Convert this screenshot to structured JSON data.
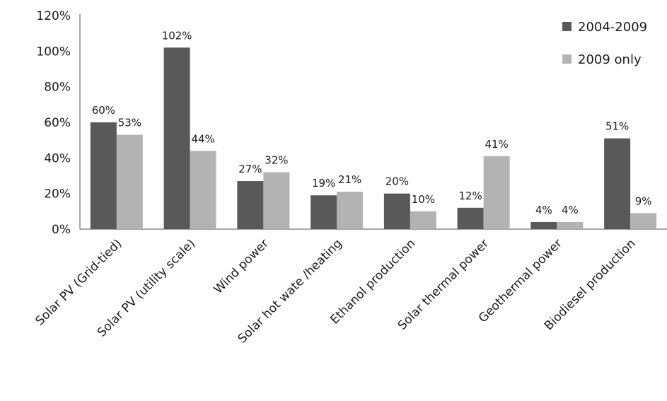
{
  "chart_data": {
    "type": "bar",
    "title": "",
    "xlabel": "",
    "ylabel": "",
    "ylim": [
      0,
      120
    ],
    "yticks": [
      "0%",
      "20%",
      "40%",
      "60%",
      "80%",
      "100%",
      "120%"
    ],
    "grid": false,
    "legend_position": "top-right",
    "categories": [
      "Solar PV (Grid-tied)",
      "Solar PV  (utility scale)",
      "Wind power",
      "Solar  hot wate /heating",
      "Ethanol production",
      "Solar thermal power",
      "Geothermal power",
      "Biodiesel production"
    ],
    "series": [
      {
        "name": "2004-2009",
        "color": "#595959",
        "values": [
          60,
          102,
          27,
          19,
          20,
          12,
          4,
          51
        ],
        "labels": [
          "60%",
          "102%",
          "27%",
          "19%",
          "20%",
          "12%",
          "4%",
          "51%"
        ]
      },
      {
        "name": "2009 only",
        "color": "#b3b3b3",
        "values": [
          53,
          44,
          32,
          21,
          10,
          41,
          4,
          9
        ],
        "labels": [
          "53%",
          "44%",
          "32%",
          "21%",
          "10%",
          "41%",
          "4%",
          "9%"
        ]
      }
    ]
  }
}
